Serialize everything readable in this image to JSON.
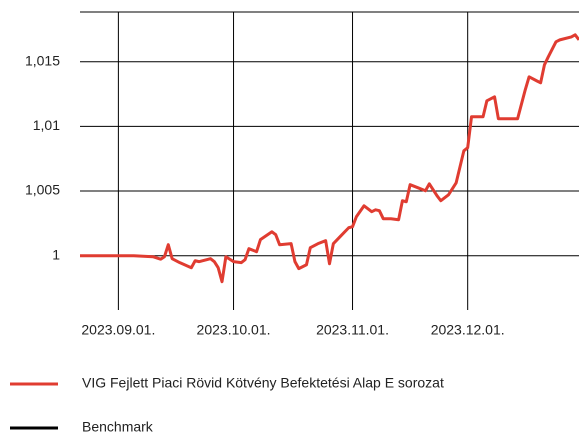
{
  "chart_data": {
    "type": "line",
    "x": [
      -10,
      4,
      9,
      11,
      12,
      13,
      14,
      16,
      19,
      20,
      21,
      24,
      25,
      26,
      27,
      28,
      30,
      32,
      33,
      34,
      36,
      37,
      40,
      41,
      42,
      45,
      46,
      47,
      49,
      50,
      52,
      54,
      55,
      56,
      58,
      60,
      61,
      62,
      64,
      66,
      67,
      68,
      69,
      71,
      73,
      74,
      75,
      76,
      78,
      80,
      81,
      83,
      84,
      86,
      88,
      90,
      91,
      92,
      94,
      95,
      96,
      98,
      99,
      103,
      104,
      106,
      107,
      109,
      110,
      111,
      112,
      114,
      115,
      118,
      119,
      120
    ],
    "series": [
      {
        "name": "VIG Fejlett Piaci Rövid Kötvény Befektetési Alap E sorozat",
        "color": "#e03c31",
        "values": [
          1.0,
          1.0,
          0.99992,
          0.99973,
          0.99992,
          1.00085,
          0.99977,
          0.99946,
          0.99907,
          0.99961,
          0.99954,
          0.99977,
          0.99954,
          0.99907,
          0.99799,
          0.99992,
          0.99954,
          0.99946,
          0.99969,
          1.00054,
          1.00031,
          1.00124,
          1.00185,
          1.00162,
          1.00085,
          1.00093,
          0.99954,
          0.999,
          0.9993,
          1.00062,
          1.00093,
          1.00116,
          0.99938,
          1.00093,
          1.00155,
          1.00216,
          1.00224,
          1.00301,
          1.00386,
          1.0034,
          1.00355,
          1.00348,
          1.00286,
          1.00286,
          1.00278,
          1.00425,
          1.00417,
          1.00549,
          1.00526,
          1.00502,
          1.00556,
          1.00464,
          1.00425,
          1.00471,
          1.00564,
          1.00811,
          1.00835,
          1.01074,
          1.01074,
          1.01074,
          1.01198,
          1.01229,
          1.01059,
          1.01059,
          1.01059,
          1.01283,
          1.01383,
          1.01352,
          1.01337,
          1.01476,
          1.01538,
          1.01654,
          1.01669,
          1.01692,
          1.01708,
          1.01669
        ]
      },
      {
        "name": "Benchmark",
        "color": "#000000",
        "values": [
          null,
          null,
          null,
          null,
          null,
          null,
          null,
          null,
          null,
          null,
          null,
          null,
          null,
          null,
          null,
          null,
          null,
          null,
          null,
          null,
          null,
          null,
          null,
          null,
          null,
          null,
          null,
          null,
          null,
          null,
          null,
          null,
          null,
          null,
          null,
          null,
          null,
          null,
          null,
          null,
          null,
          null,
          null,
          null,
          null,
          null,
          null,
          null,
          null,
          null,
          null,
          null,
          null,
          null,
          null,
          null,
          null,
          null,
          null,
          null,
          null,
          null,
          null,
          null,
          null,
          null,
          null,
          null,
          null,
          null,
          null,
          null,
          null,
          null,
          null,
          null
        ]
      }
    ],
    "xlim": [
      -10,
      120
    ],
    "xticks": [
      {
        "value": 0,
        "label": "2023.09.01."
      },
      {
        "value": 30,
        "label": "2023.10.01."
      },
      {
        "value": 61,
        "label": "2023.11.01."
      },
      {
        "value": 91,
        "label": "2023.12.01."
      }
    ],
    "ylim": [
      0.9958,
      1.019
    ],
    "yticks": [
      1,
      {
        "value": 1.005,
        "label": "1,005"
      },
      {
        "value": 1.01,
        "label": "1,01"
      },
      {
        "value": 1.015,
        "label": "1,015"
      }
    ],
    "grid": true
  }
}
